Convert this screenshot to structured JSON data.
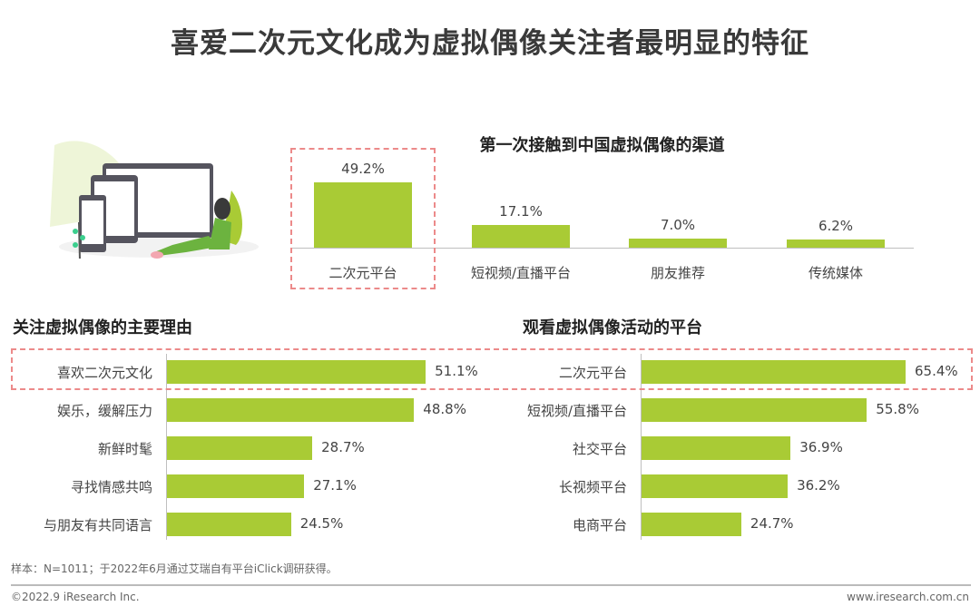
{
  "title": "喜爱二次元文化成为虚拟偶像关注者最明显的特征",
  "colors": {
    "bar": "#a9cb35",
    "highlight": "#ec8a8a"
  },
  "chart_data": [
    {
      "type": "bar",
      "orientation": "vertical",
      "title": "第一次接触到中国虚拟偶像的渠道",
      "categories": [
        "二次元平台",
        "短视频/直播平台",
        "朋友推荐",
        "传统媒体"
      ],
      "values": [
        49.2,
        17.1,
        7.0,
        6.2
      ],
      "value_labels": [
        "49.2%",
        "17.1%",
        "7.0%",
        "6.2%"
      ],
      "unit": "%",
      "highlighted": "二次元平台"
    },
    {
      "type": "bar",
      "orientation": "horizontal",
      "title": "关注虚拟偶像的主要理由",
      "categories": [
        "喜欢二次元文化",
        "娱乐，缓解压力",
        "新鲜时髦",
        "寻找情感共鸣",
        "与朋友有共同语言"
      ],
      "values": [
        51.1,
        48.8,
        28.7,
        27.1,
        24.5
      ],
      "value_labels": [
        "51.1%",
        "48.8%",
        "28.7%",
        "27.1%",
        "24.5%"
      ],
      "unit": "%",
      "highlighted": "喜欢二次元文化"
    },
    {
      "type": "bar",
      "orientation": "horizontal",
      "title": "观看虚拟偶像活动的平台",
      "categories": [
        "二次元平台",
        "短视频/直播平台",
        "社交平台",
        "长视频平台",
        "电商平台"
      ],
      "values": [
        65.4,
        55.8,
        36.9,
        36.2,
        24.7
      ],
      "value_labels": [
        "65.4%",
        "55.8%",
        "36.9%",
        "36.2%",
        "24.7%"
      ],
      "unit": "%",
      "highlighted": "二次元平台"
    }
  ],
  "note": "样本：N=1011；于2022年6月通过艾瑞自有平台iClick调研获得。",
  "footer": {
    "copyright": "©2022.9 iResearch Inc.",
    "website": "www.iresearch.com.cn"
  }
}
